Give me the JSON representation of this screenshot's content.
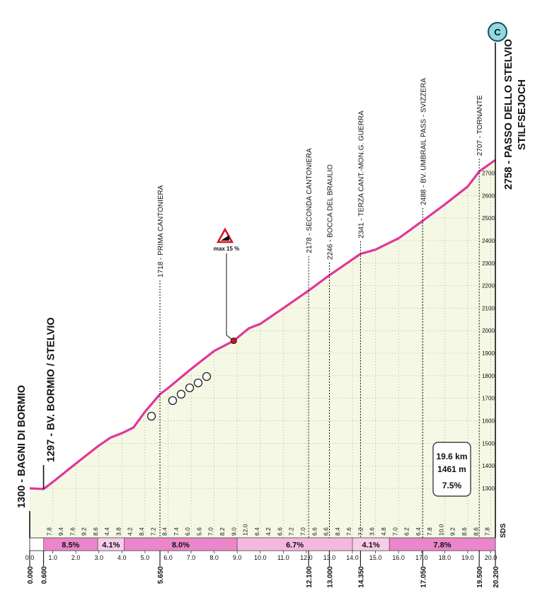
{
  "chart_data": {
    "type": "area",
    "x": [
      0,
      0.6,
      1,
      2,
      3,
      3.5,
      4,
      4.5,
      5,
      5.65,
      6,
      7,
      8,
      8.85,
      9.5,
      10,
      11,
      12.1,
      13,
      14.35,
      15,
      16,
      17.05,
      18,
      19,
      19.5,
      20.2
    ],
    "values": [
      1300,
      1297,
      1328,
      1410,
      1490,
      1525,
      1545,
      1570,
      1640,
      1718,
      1745,
      1830,
      1910,
      1955,
      2010,
      2030,
      2100,
      2178,
      2246,
      2341,
      2360,
      2410,
      2488,
      2560,
      2640,
      2707,
      2758
    ],
    "color": "#e0379b",
    "fill_color": "#f5f8e4",
    "xlim": [
      0,
      20.2
    ],
    "ylim": [
      1080,
      2780
    ],
    "xticks": [
      {
        "value": 0,
        "label": "0.0"
      },
      {
        "value": 1,
        "label": "1.0"
      },
      {
        "value": 2,
        "label": "2.0"
      },
      {
        "value": 3,
        "label": "3.0"
      },
      {
        "value": 4,
        "label": "4.0"
      },
      {
        "value": 5,
        "label": "5.0"
      },
      {
        "value": 6,
        "label": "6.0"
      },
      {
        "value": 7,
        "label": "7.0"
      },
      {
        "value": 8,
        "label": "8.0"
      },
      {
        "value": 9,
        "label": "9.0"
      },
      {
        "value": 10,
        "label": "10.0"
      },
      {
        "value": 11,
        "label": "11.0"
      },
      {
        "value": 12,
        "label": "12.0"
      },
      {
        "value": 13,
        "label": "13.0"
      },
      {
        "value": 14,
        "label": "14.0"
      },
      {
        "value": 15,
        "label": "15.0"
      },
      {
        "value": 16,
        "label": "16.0"
      },
      {
        "value": 17,
        "label": "17.0"
      },
      {
        "value": 18,
        "label": "18.0"
      },
      {
        "value": 19,
        "label": "19.0"
      },
      {
        "value": 20,
        "label": "20.0"
      }
    ],
    "yticks": [
      1300,
      1400,
      1500,
      1600,
      1700,
      1800,
      1900,
      2000,
      2100,
      2200,
      2300,
      2400,
      2500,
      2600,
      2700
    ],
    "grid": true,
    "waypoints": [
      {
        "label": "1300 - BAGNI DI BORMIO",
        "km": 0,
        "km_label": "0.000",
        "major": true
      },
      {
        "label": "1297 - BV. BORMIO / STELVIO",
        "km": 0.6,
        "km_label": "0.600",
        "major": true
      },
      {
        "label": "1718 - PRIMA CANTONIERA",
        "km": 5.65,
        "km_label": "5.650"
      },
      {
        "label": "2178 - SECONDA CANTONIERA",
        "km": 12.1,
        "km_label": "12.100"
      },
      {
        "label": "2246 - BOCCA DEL BRAULIO",
        "km": 13,
        "km_label": "13.000"
      },
      {
        "label": "2341 - TERZA CANT.-MON.G. GUERRA",
        "km": 14.35,
        "km_label": "14.350"
      },
      {
        "label": "2488 - BV. UMBRAIL PASS - SVIZZERA",
        "km": 17.05,
        "km_label": "17.050"
      },
      {
        "label": "2707 - TORNANTE",
        "km": 19.5,
        "km_label": "19.500"
      },
      {
        "label": "2758 - PASSO DELLO STELVIO",
        "sublabel": "STILFSEJOCH",
        "km": 20.2,
        "km_label": "20.200",
        "major": true
      }
    ],
    "gradient_segments": [
      {
        "start": 0.6,
        "end": 2.95,
        "value": 8.5,
        "value_label": "8.5%",
        "color": "#ea86c9"
      },
      {
        "start": 2.95,
        "end": 4.1,
        "value": 4.1,
        "value_label": "4.1%",
        "color": "#f7cdea"
      },
      {
        "start": 4.1,
        "end": 9.0,
        "value": 8.0,
        "value_label": "8.0%",
        "color": "#ea86c9"
      },
      {
        "start": 9.0,
        "end": 14.0,
        "value": 6.7,
        "value_label": "6.7%",
        "color": "#f4b8e0"
      },
      {
        "start": 14.0,
        "end": 15.6,
        "value": 4.1,
        "value_label": "4.1%",
        "color": "#f7cdea"
      },
      {
        "start": 15.6,
        "end": 20.2,
        "value": 7.8,
        "value_label": "7.8%",
        "color": "#ea86c9"
      }
    ],
    "half_km_gradient_labels": [
      "7.8",
      "9.4",
      "7.6",
      "9.2",
      "8.6",
      "4.4",
      "3.8",
      "4.2",
      "8.4",
      "7.2",
      "8.4",
      "7.4",
      "6.0",
      "5.6",
      "7.0",
      "8.2",
      "9.0",
      "12.0",
      "6.4",
      "4.2",
      "6.6",
      "7.2",
      "7.0",
      "6.6",
      "6.6",
      "8.4",
      "7.6",
      "7.2",
      "3.6",
      "4.8",
      "7.0",
      "6.2",
      "6.4",
      "7.8",
      "10.0",
      "9.2",
      "8.6",
      "8.6",
      "7.8"
    ],
    "max_gradient": {
      "label": "max 15 %",
      "km": 8.85
    },
    "summary": [
      "19.6 km",
      "1461 m",
      "7.5%"
    ],
    "finish_badge": "C",
    "logo": "SDS"
  }
}
